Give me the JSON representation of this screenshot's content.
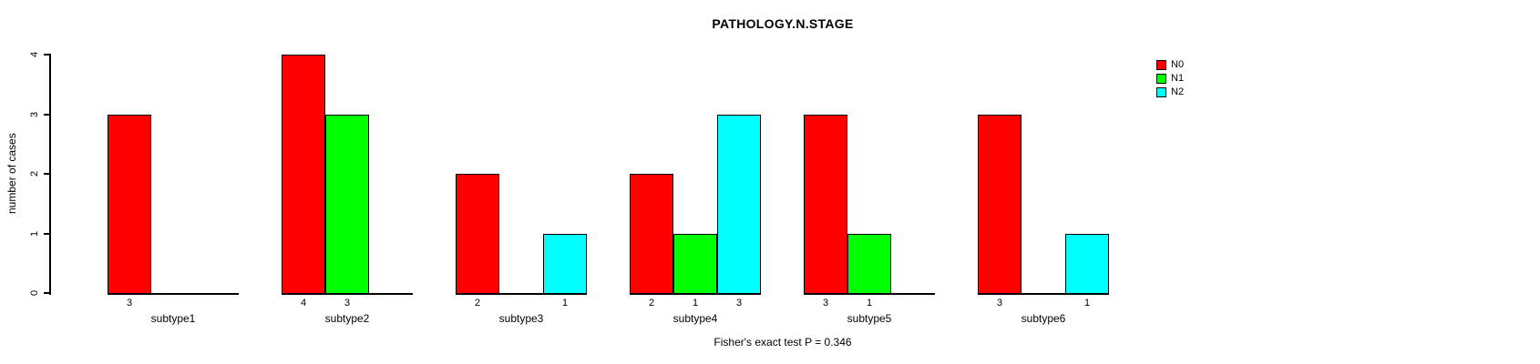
{
  "chart_data": {
    "type": "bar",
    "grouped": true,
    "title": "PATHOLOGY.N.STAGE",
    "ylabel": "number of cases",
    "xlabel": "",
    "annotation": "Fisher's exact test P = 0.346",
    "categories": [
      "subtype1",
      "subtype2",
      "subtype3",
      "subtype4",
      "subtype5",
      "subtype6"
    ],
    "series": [
      {
        "name": "N0",
        "color": "#ff0000",
        "values": [
          3,
          4,
          2,
          2,
          3,
          3
        ]
      },
      {
        "name": "N1",
        "color": "#00ff00",
        "values": [
          0,
          3,
          0,
          1,
          1,
          0
        ]
      },
      {
        "name": "N2",
        "color": "#00ffff",
        "values": [
          0,
          0,
          1,
          3,
          0,
          1
        ]
      }
    ],
    "yticks": [
      0,
      1,
      2,
      3,
      4
    ],
    "ylim": [
      0,
      4
    ],
    "bar_value_labels": "shown under each nonzero bar",
    "legend_position": "top-right",
    "grid": "off",
    "axis_color": "#000000",
    "background_color": "#ffffff"
  }
}
